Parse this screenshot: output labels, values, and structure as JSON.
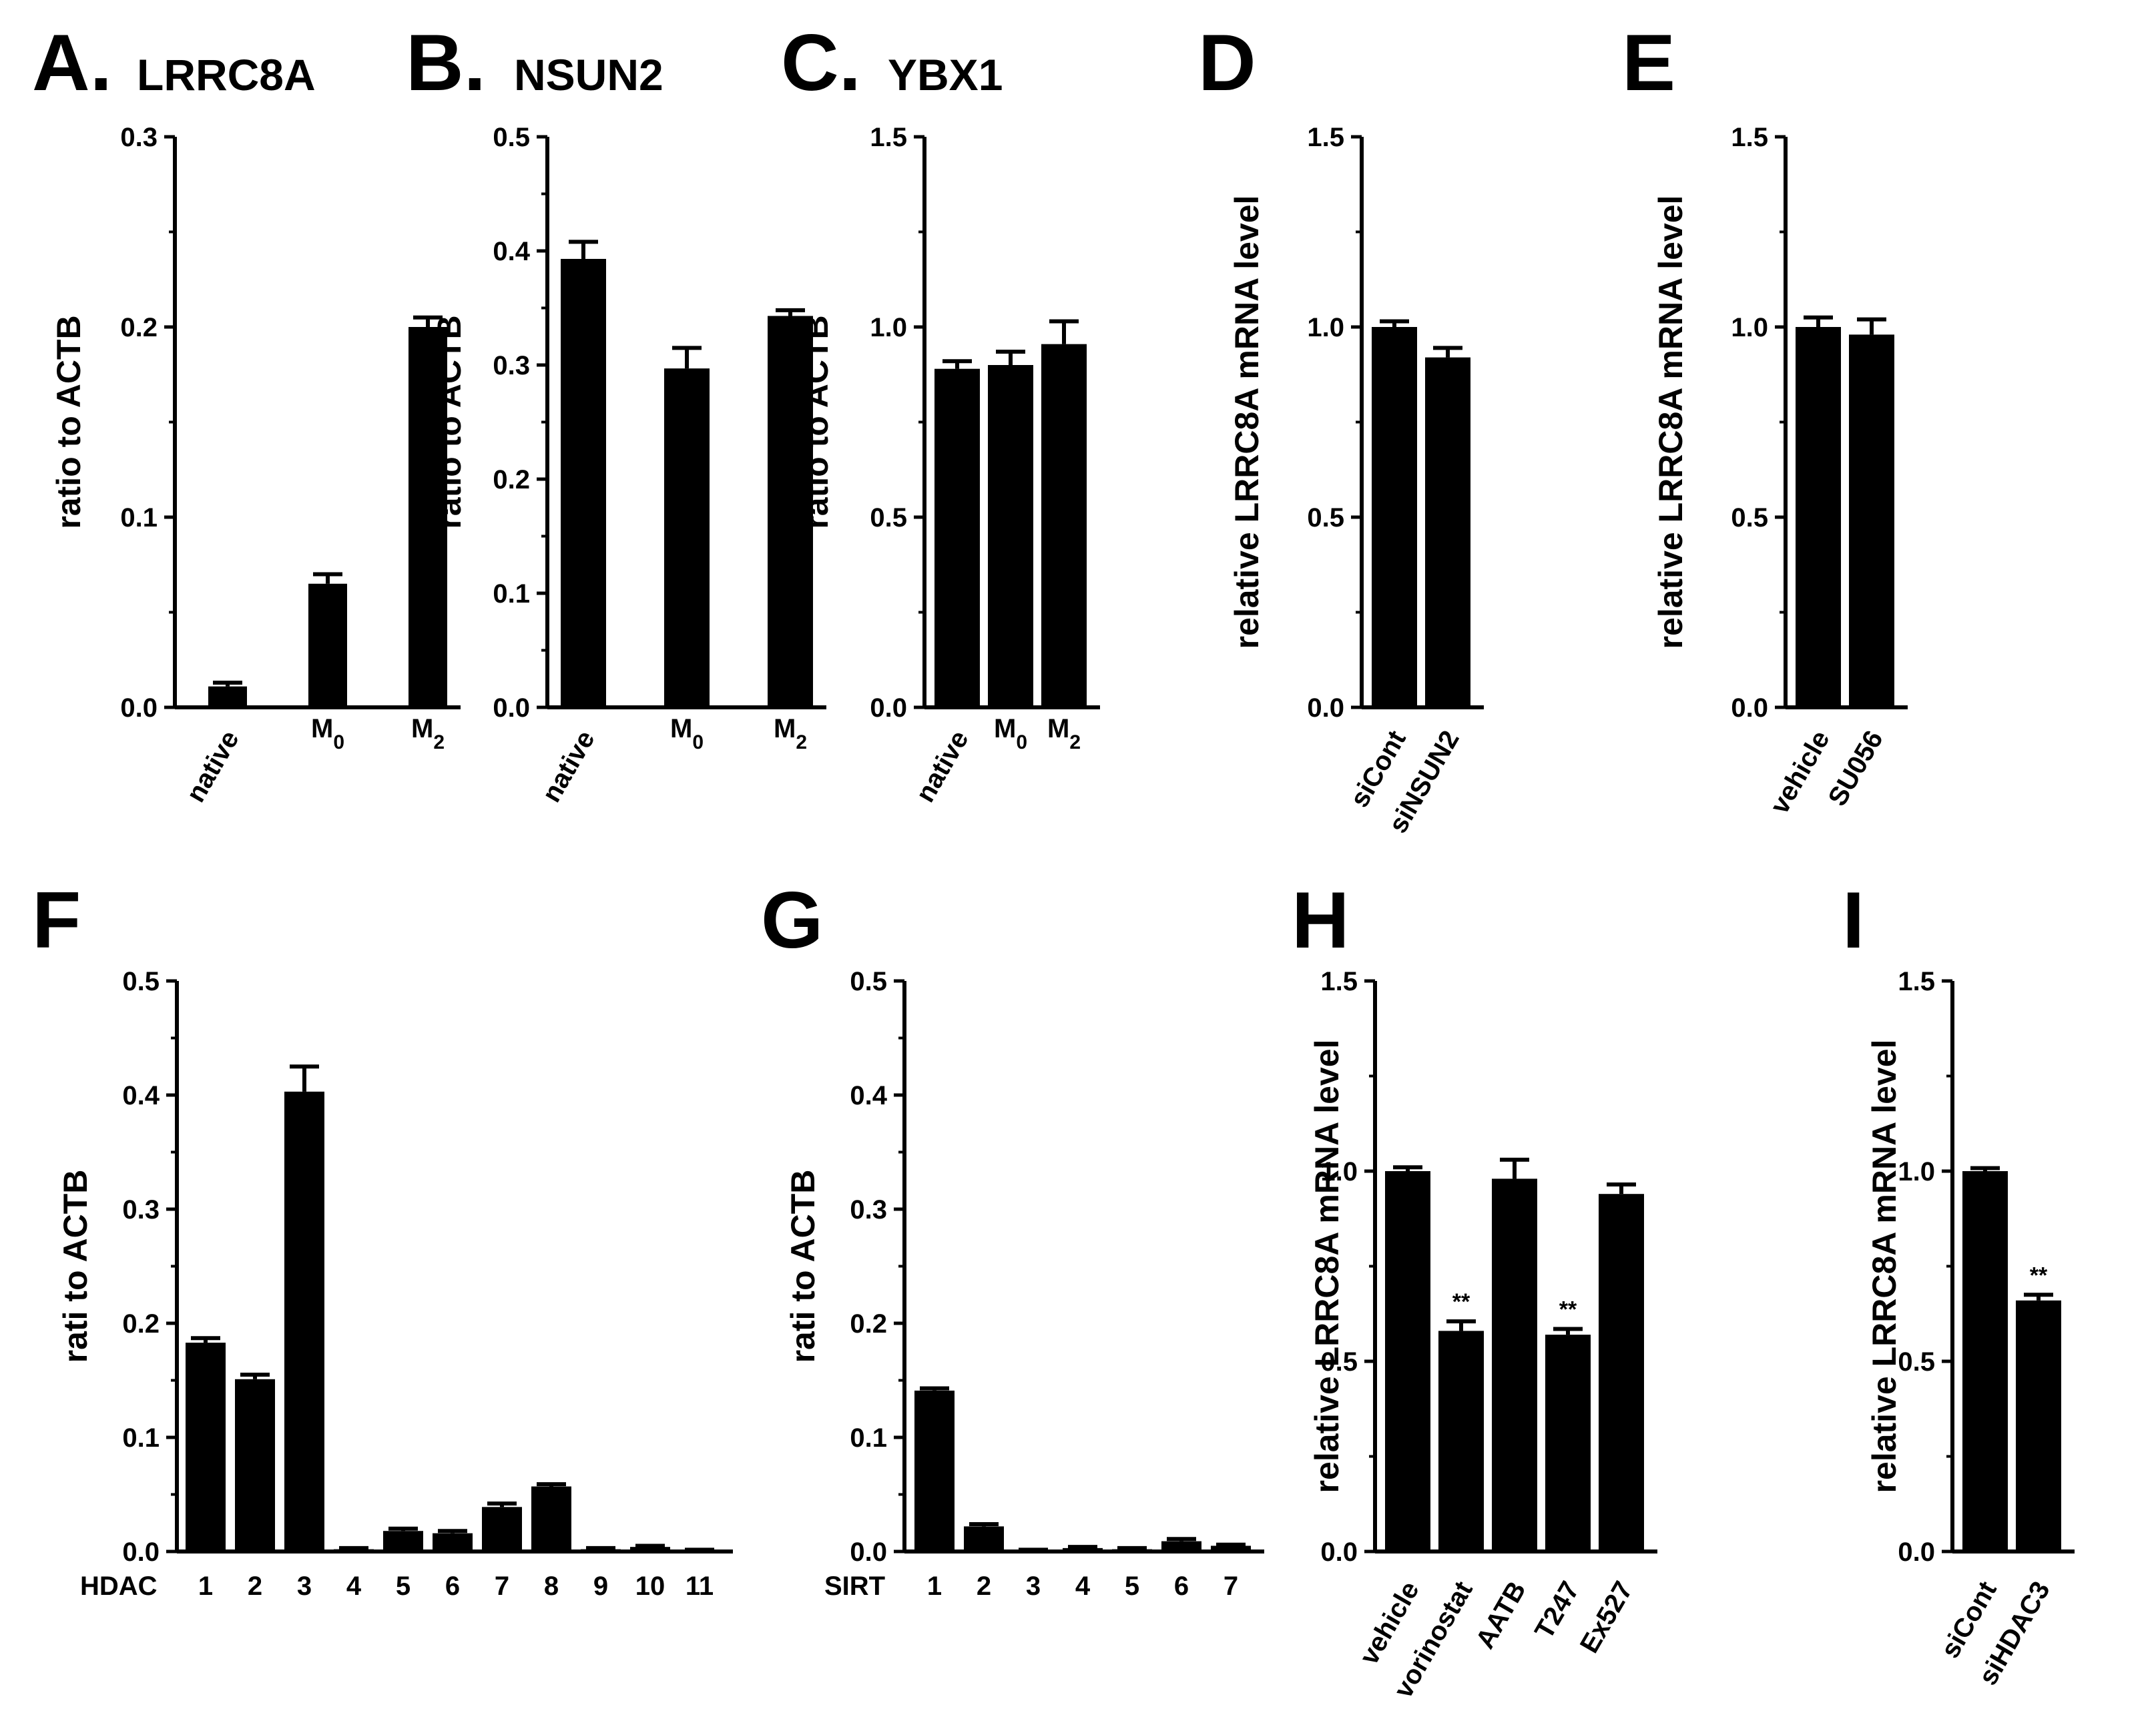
{
  "figure": {
    "background": "#ffffff",
    "bar_color": "#000000"
  },
  "chart_data": [
    {
      "id": "A",
      "letter": "A.",
      "title": "LRRC8A",
      "type": "bar",
      "ylabel": "ratio to ACTB",
      "ylim": [
        0,
        0.3
      ],
      "yticks": [
        "0.0",
        "0.1",
        "0.2",
        "0.3"
      ],
      "categories": [
        {
          "base": "native"
        },
        {
          "base": "M",
          "sub": "0"
        },
        {
          "base": "M",
          "sub": "2"
        }
      ],
      "cat_rotate": [
        true,
        false,
        false
      ],
      "values": [
        0.011,
        0.065,
        0.2
      ],
      "errors": [
        0.002,
        0.005,
        0.005
      ],
      "sig": [
        "",
        "",
        ""
      ]
    },
    {
      "id": "B",
      "letter": "B.",
      "title": "NSUN2",
      "type": "bar",
      "ylabel": "ratio to ACTB",
      "ylim": [
        0,
        0.5
      ],
      "yticks": [
        "0.0",
        "0.1",
        "0.2",
        "0.3",
        "0.4",
        "0.5"
      ],
      "categories": [
        {
          "base": "native"
        },
        {
          "base": "M",
          "sub": "0"
        },
        {
          "base": "M",
          "sub": "2"
        }
      ],
      "cat_rotate": [
        true,
        false,
        false
      ],
      "values": [
        0.393,
        0.297,
        0.343
      ],
      "errors": [
        0.015,
        0.018,
        0.005
      ],
      "sig": [
        "",
        "",
        ""
      ]
    },
    {
      "id": "C",
      "letter": "C.",
      "title": "YBX1",
      "type": "bar",
      "ylabel": "ratio to ACTB",
      "ylim": [
        0,
        1.5
      ],
      "yticks": [
        "0.0",
        "0.5",
        "1.0",
        "1.5"
      ],
      "categories": [
        {
          "base": "native"
        },
        {
          "base": "M",
          "sub": "0"
        },
        {
          "base": "M",
          "sub": "2"
        }
      ],
      "cat_rotate": [
        true,
        false,
        false
      ],
      "values": [
        0.89,
        0.9,
        0.955
      ],
      "errors": [
        0.02,
        0.035,
        0.06
      ],
      "sig": [
        "",
        "",
        ""
      ]
    },
    {
      "id": "D",
      "letter": "D",
      "title": "",
      "type": "bar",
      "ylabel": "relative LRRC8A mRNA level",
      "ylim": [
        0,
        1.5
      ],
      "yticks": [
        "0.0",
        "0.5",
        "1.0",
        "1.5"
      ],
      "categories": [
        {
          "base": "siCont"
        },
        {
          "base": "siNSUN2"
        }
      ],
      "cat_rotate": [
        true,
        true
      ],
      "values": [
        1.0,
        0.92
      ],
      "errors": [
        0.015,
        0.025
      ],
      "sig": [
        "",
        ""
      ]
    },
    {
      "id": "E",
      "letter": "E",
      "title": "",
      "type": "bar",
      "ylabel": "relative LRRC8A mRNA level",
      "ylim": [
        0,
        1.5
      ],
      "yticks": [
        "0.0",
        "0.5",
        "1.0",
        "1.5"
      ],
      "categories": [
        {
          "base": "vehicle"
        },
        {
          "base": "SU056"
        }
      ],
      "cat_rotate": [
        true,
        true
      ],
      "values": [
        1.0,
        0.98
      ],
      "errors": [
        0.025,
        0.04
      ],
      "sig": [
        "",
        ""
      ]
    },
    {
      "id": "F",
      "letter": "F",
      "title": "",
      "type": "bar",
      "ylabel": "rati to ACTB",
      "ylim": [
        0,
        0.5
      ],
      "yticks": [
        "0.0",
        "0.1",
        "0.2",
        "0.3",
        "0.4",
        "0.5"
      ],
      "prefix": "HDAC",
      "categories": [
        {
          "base": "1"
        },
        {
          "base": "2"
        },
        {
          "base": "3"
        },
        {
          "base": "4"
        },
        {
          "base": "5"
        },
        {
          "base": "6"
        },
        {
          "base": "7"
        },
        {
          "base": "8"
        },
        {
          "base": "9"
        },
        {
          "base": "10"
        },
        {
          "base": "11"
        }
      ],
      "cat_rotate": [
        false,
        false,
        false,
        false,
        false,
        false,
        false,
        false,
        false,
        false,
        false
      ],
      "values": [
        0.183,
        0.151,
        0.403,
        0.002,
        0.018,
        0.016,
        0.039,
        0.057,
        0.002,
        0.004,
        0.001
      ],
      "errors": [
        0.004,
        0.004,
        0.022,
        0.001,
        0.002,
        0.002,
        0.003,
        0.002,
        0.001,
        0.001,
        0.0005
      ],
      "sig": [
        "",
        "",
        "",
        "",
        "",
        "",
        "",
        "",
        "",
        "",
        ""
      ]
    },
    {
      "id": "G",
      "letter": "G",
      "title": "",
      "type": "bar",
      "ylabel": "rati to ACTB",
      "ylim": [
        0,
        0.5
      ],
      "yticks": [
        "0.0",
        "0.1",
        "0.2",
        "0.3",
        "0.4",
        "0.5"
      ],
      "prefix": "SIRT",
      "categories": [
        {
          "base": "1"
        },
        {
          "base": "2"
        },
        {
          "base": "3"
        },
        {
          "base": "4"
        },
        {
          "base": "5"
        },
        {
          "base": "6"
        },
        {
          "base": "7"
        }
      ],
      "cat_rotate": [
        false,
        false,
        false,
        false,
        false,
        false,
        false
      ],
      "values": [
        0.141,
        0.022,
        0.001,
        0.003,
        0.002,
        0.009,
        0.005
      ],
      "errors": [
        0.002,
        0.002,
        0.0005,
        0.001,
        0.001,
        0.002,
        0.001
      ],
      "sig": [
        "",
        "",
        "",
        "",
        "",
        "",
        ""
      ]
    },
    {
      "id": "H",
      "letter": "H",
      "title": "",
      "type": "bar",
      "ylabel": "relative LRRC8A mRNA level",
      "ylim": [
        0,
        1.5
      ],
      "yticks": [
        "0.0",
        "0.5",
        "1.0",
        "1.5"
      ],
      "categories": [
        {
          "base": "vehicle"
        },
        {
          "base": "vorinostat"
        },
        {
          "base": "AATB"
        },
        {
          "base": "T247"
        },
        {
          "base": "Ex527"
        }
      ],
      "cat_rotate": [
        true,
        true,
        true,
        true,
        true
      ],
      "values": [
        1.0,
        0.58,
        0.98,
        0.57,
        0.94
      ],
      "errors": [
        0.01,
        0.025,
        0.05,
        0.015,
        0.025
      ],
      "sig": [
        "",
        "**",
        "",
        "**",
        ""
      ]
    },
    {
      "id": "I",
      "letter": "I",
      "title": "",
      "type": "bar",
      "ylabel": "relative LRRC8A mRNA level",
      "ylim": [
        0,
        1.5
      ],
      "yticks": [
        "0.0",
        "0.5",
        "1.0",
        "1.5"
      ],
      "categories": [
        {
          "base": "siCont"
        },
        {
          "base": "siHDAC3"
        }
      ],
      "cat_rotate": [
        true,
        true
      ],
      "values": [
        1.0,
        0.66
      ],
      "errors": [
        0.008,
        0.015
      ],
      "sig": [
        "",
        "**"
      ]
    }
  ]
}
